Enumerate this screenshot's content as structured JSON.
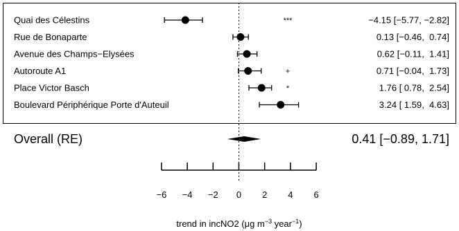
{
  "chart_data": {
    "type": "forest",
    "studies": [
      {
        "label": "Quai des Célestins",
        "estimate": -4.15,
        "lower": -5.77,
        "upper": -2.82,
        "ci_text": "−4.15 [−5.77, −2.82]",
        "sig": "***"
      },
      {
        "label": "Rue de Bonaparte",
        "estimate": 0.13,
        "lower": -0.46,
        "upper": 0.74,
        "ci_text": "0.13 [−0.46,  0.74]",
        "sig": ""
      },
      {
        "label": "Avenue des Champs−Elysées",
        "estimate": 0.62,
        "lower": -0.11,
        "upper": 1.41,
        "ci_text": "0.62 [−0.11,  1.41]",
        "sig": ""
      },
      {
        "label": "Autoroute A1",
        "estimate": 0.71,
        "lower": -0.04,
        "upper": 1.73,
        "ci_text": "0.71 [−0.04,  1.73]",
        "sig": "+"
      },
      {
        "label": "Place Victor Basch",
        "estimate": 1.76,
        "lower": 0.78,
        "upper": 2.54,
        "ci_text": "1.76 [ 0.78,  2.54]",
        "sig": "*"
      },
      {
        "label": "Boulevard Périphérique Porte d'Auteuil",
        "estimate": 3.24,
        "lower": 1.59,
        "upper": 4.63,
        "ci_text": "3.24 [ 1.59,  4.63]",
        "sig": ""
      }
    ],
    "overall": {
      "label": "Overall (RE)",
      "estimate": 0.41,
      "lower": -0.89,
      "upper": 1.71,
      "ci_text": "0.41 [−0.89, 1.71]"
    },
    "x_ticks": [
      -6,
      -4,
      -2,
      0,
      2,
      4,
      6
    ],
    "x_tick_labels": [
      "−6",
      "−4",
      "−2",
      "0",
      "2",
      "4",
      "6"
    ],
    "xlim": [
      -6,
      6
    ],
    "xlabel_main": "trend in incNO2 (",
    "xlabel_mu": "μ",
    "xlabel_g": "g m",
    "xlabel_exp1": "−3",
    "xlabel_year": " year",
    "xlabel_exp2": "−1",
    "xlabel_close": ")",
    "reference_line": 0
  }
}
